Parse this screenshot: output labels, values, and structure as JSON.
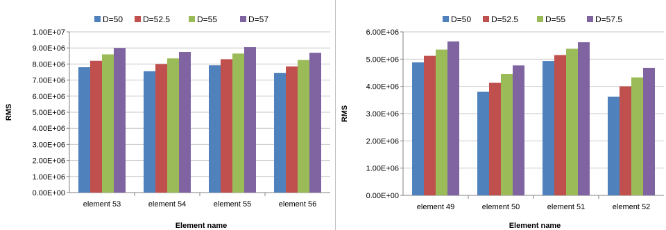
{
  "chart_data": [
    {
      "type": "bar",
      "categories": [
        "element 53",
        "element 54",
        "element 55",
        "element 56"
      ],
      "series": [
        {
          "name": "D=50",
          "color": "#4F81BD",
          "values": [
            7800000,
            7550000,
            7920000,
            7450000
          ]
        },
        {
          "name": "D=52.5",
          "color": "#C0504D",
          "values": [
            8200000,
            8000000,
            8300000,
            7850000
          ]
        },
        {
          "name": "D=55",
          "color": "#9BBB59",
          "values": [
            8600000,
            8350000,
            8650000,
            8250000
          ]
        },
        {
          "name": "D=57",
          "color": "#8064A2",
          "values": [
            9000000,
            8750000,
            9050000,
            8700000
          ]
        }
      ],
      "xlabel": "Element name",
      "ylabel": "RMS",
      "ylim": [
        0,
        10000000
      ],
      "yticks": [
        "0.00E+00",
        "1.00E+06",
        "2.00E+06",
        "3.00E+06",
        "4.00E+06",
        "5.00E+06",
        "6.00E+06",
        "7.00E+06",
        "8.00E+06",
        "9.00E+06",
        "1.00E+07"
      ],
      "grid": true,
      "legend": "top"
    },
    {
      "type": "bar",
      "categories": [
        "element 49",
        "element 50",
        "element 51",
        "element 52"
      ],
      "series": [
        {
          "name": "D=50",
          "color": "#4F81BD",
          "values": [
            4880000,
            3800000,
            4930000,
            3620000
          ]
        },
        {
          "name": "D=52.5",
          "color": "#C0504D",
          "values": [
            5120000,
            4130000,
            5150000,
            4000000
          ]
        },
        {
          "name": "D=55",
          "color": "#9BBB59",
          "values": [
            5350000,
            4450000,
            5380000,
            4330000
          ]
        },
        {
          "name": "D=57.5",
          "color": "#8064A2",
          "values": [
            5650000,
            4770000,
            5620000,
            4680000
          ]
        }
      ],
      "xlabel": "Element name",
      "ylabel": "RMS",
      "ylim": [
        0,
        6000000
      ],
      "yticks": [
        "0.00E+00",
        "1.00E+06",
        "2.00E+06",
        "3.00E+06",
        "4.00E+06",
        "5.00E+06",
        "6.00E+06"
      ],
      "grid": true,
      "legend": "top"
    }
  ]
}
